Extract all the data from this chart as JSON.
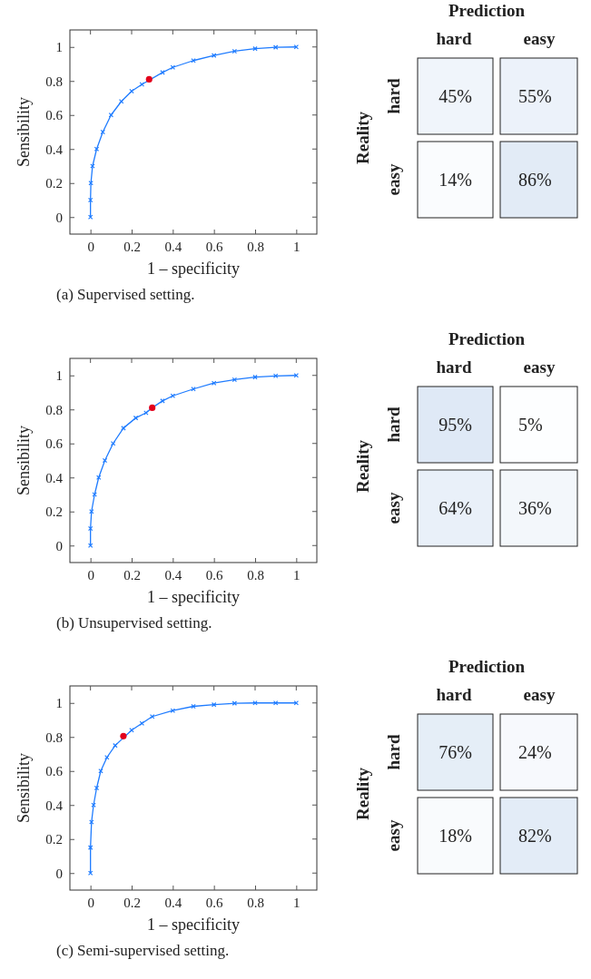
{
  "chart_data": [
    {
      "type": "line",
      "xlabel": "1 – specificity",
      "ylabel": "Sensibility",
      "xlim": [
        -0.1,
        1.1
      ],
      "ylim": [
        -0.1,
        1.1
      ],
      "xticks": [
        0,
        0.2,
        0.4,
        0.6,
        0.8,
        1
      ],
      "yticks": [
        0,
        0.2,
        0.4,
        0.6,
        0.8,
        1
      ],
      "annotations": [
        "(a) Supervised setting."
      ],
      "series": [
        {
          "type": "line",
          "color": "#1f7cff",
          "marker": "cross",
          "x": [
            0,
            0,
            0.002,
            0.01,
            0.03,
            0.06,
            0.1,
            0.15,
            0.2,
            0.25,
            0.35,
            0.4,
            0.5,
            0.6,
            0.7,
            0.8,
            0.9,
            1
          ],
          "values": [
            0,
            0.1,
            0.2,
            0.3,
            0.4,
            0.5,
            0.6,
            0.68,
            0.74,
            0.78,
            0.85,
            0.88,
            0.92,
            0.95,
            0.975,
            0.99,
            0.998,
            1
          ]
        },
        {
          "type": "scatter",
          "color": "#e3001b",
          "marker": "circle",
          "x": [
            0.285
          ],
          "values": [
            0.81
          ]
        }
      ]
    },
    {
      "type": "heatmap",
      "xlabel": "Prediction",
      "ylabel": "Reality",
      "categories": [
        "hard",
        "easy"
      ],
      "y_categories": [
        "hard",
        "easy"
      ],
      "cells": [
        [
          45,
          55
        ],
        [
          14,
          86
        ]
      ],
      "cell_labels": [
        [
          "45%",
          "55%"
        ],
        [
          "14%",
          "86%"
        ]
      ]
    },
    {
      "type": "line",
      "xlabel": "1 – specificity",
      "ylabel": "Sensibility",
      "xlim": [
        -0.1,
        1.1
      ],
      "ylim": [
        -0.1,
        1.1
      ],
      "xticks": [
        0,
        0.2,
        0.4,
        0.6,
        0.8,
        1
      ],
      "yticks": [
        0,
        0.2,
        0.4,
        0.6,
        0.8,
        1
      ],
      "annotations": [
        "(b) Unsupervised setting."
      ],
      "series": [
        {
          "type": "line",
          "color": "#1f7cff",
          "marker": "cross",
          "x": [
            0,
            0,
            0.005,
            0.02,
            0.04,
            0.07,
            0.11,
            0.16,
            0.22,
            0.27,
            0.3,
            0.35,
            0.4,
            0.5,
            0.6,
            0.7,
            0.8,
            0.9,
            1
          ],
          "values": [
            0,
            0.1,
            0.2,
            0.3,
            0.4,
            0.5,
            0.6,
            0.69,
            0.75,
            0.78,
            0.81,
            0.85,
            0.88,
            0.92,
            0.955,
            0.975,
            0.99,
            0.997,
            1
          ]
        },
        {
          "type": "scatter",
          "color": "#e3001b",
          "marker": "circle",
          "x": [
            0.3
          ],
          "values": [
            0.81
          ]
        }
      ]
    },
    {
      "type": "heatmap",
      "xlabel": "Prediction",
      "ylabel": "Reality",
      "categories": [
        "hard",
        "easy"
      ],
      "y_categories": [
        "hard",
        "easy"
      ],
      "cells": [
        [
          95,
          5
        ],
        [
          64,
          36
        ]
      ],
      "cell_labels": [
        [
          "95%",
          "5%"
        ],
        [
          "64%",
          "36%"
        ]
      ]
    },
    {
      "type": "line",
      "xlabel": "1 – specificity",
      "ylabel": "Sensibility",
      "xlim": [
        -0.1,
        1.1
      ],
      "ylim": [
        -0.1,
        1.1
      ],
      "xticks": [
        0,
        0.2,
        0.4,
        0.6,
        0.8,
        1
      ],
      "yticks": [
        0,
        0.2,
        0.4,
        0.6,
        0.8,
        1
      ],
      "annotations": [
        "(c) Semi-supervised setting."
      ],
      "series": [
        {
          "type": "line",
          "color": "#1f7cff",
          "marker": "cross",
          "x": [
            0,
            0,
            0.005,
            0.015,
            0.03,
            0.05,
            0.08,
            0.12,
            0.2,
            0.25,
            0.3,
            0.4,
            0.5,
            0.6,
            0.7,
            0.8,
            0.9,
            1
          ],
          "values": [
            0,
            0.15,
            0.3,
            0.4,
            0.5,
            0.6,
            0.68,
            0.75,
            0.84,
            0.88,
            0.92,
            0.955,
            0.98,
            0.99,
            0.998,
            1,
            1,
            1
          ]
        },
        {
          "type": "scatter",
          "color": "#e3001b",
          "marker": "circle",
          "x": [
            0.16
          ],
          "values": [
            0.805
          ]
        }
      ]
    },
    {
      "type": "heatmap",
      "xlabel": "Prediction",
      "ylabel": "Reality",
      "categories": [
        "hard",
        "easy"
      ],
      "y_categories": [
        "hard",
        "easy"
      ],
      "cells": [
        [
          76,
          24
        ],
        [
          18,
          82
        ]
      ],
      "cell_labels": [
        [
          "76%",
          "24%"
        ],
        [
          "18%",
          "82%"
        ]
      ]
    }
  ]
}
